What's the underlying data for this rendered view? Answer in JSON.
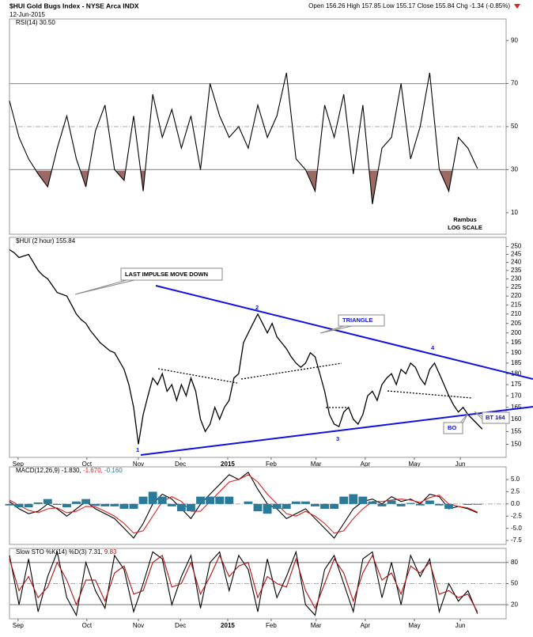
{
  "header": {
    "title": "$HUI Gold Bugs Index - NYSE Arca INDX",
    "date": "12-Jun-2015",
    "quote": "Open 156.26 High 157.85 Low 155.17 Close 155.84 Chg -1.34 (-0.85%)"
  },
  "chart_data": [
    {
      "type": "line",
      "legend": "RSI(14) 30.50",
      "ylim": [
        0,
        100
      ],
      "yticks": [
        10,
        30,
        50,
        70,
        90
      ],
      "hlines": [
        70,
        50,
        30
      ],
      "xlim": [
        0,
        52
      ],
      "annotations": [
        "Rambus",
        "LOG SCALE"
      ],
      "series": [
        {
          "name": "RSI(14)",
          "color": "#000000",
          "fill_below": 30,
          "fill_color": "#9b6a64",
          "values": [
            62,
            45,
            35,
            28,
            22,
            40,
            55,
            35,
            22,
            48,
            60,
            30,
            25,
            55,
            20,
            65,
            45,
            58,
            40,
            55,
            30,
            70,
            55,
            45,
            50,
            40,
            60,
            45,
            55,
            75,
            35,
            30,
            20,
            60,
            45,
            65,
            28,
            60,
            14,
            40,
            45,
            70,
            35,
            50,
            75,
            30,
            20,
            45,
            40,
            30.5
          ]
        }
      ]
    },
    {
      "type": "line",
      "legend": "$HUI (2 hour) 155.84",
      "log_scale": true,
      "ylim": [
        145,
        256
      ],
      "xlim": [
        0,
        104
      ],
      "yticks": [
        150,
        155,
        160,
        165,
        170,
        175,
        180,
        185,
        190,
        195,
        200,
        205,
        210,
        215,
        220,
        225,
        230,
        235,
        240,
        245,
        250
      ],
      "xticks": [
        {
          "value": 1.8,
          "label": "Sep"
        },
        {
          "value": 16.2,
          "label": "Oct"
        },
        {
          "value": 27,
          "label": "Nov"
        },
        {
          "value": 35.8,
          "label": "Dec"
        },
        {
          "value": 45.7,
          "label": "2015"
        },
        {
          "value": 54.8,
          "label": "Feb"
        },
        {
          "value": 64.2,
          "label": "Mar"
        },
        {
          "value": 74.5,
          "label": "Apr"
        },
        {
          "value": 84.8,
          "label": "May"
        },
        {
          "value": 94.4,
          "label": "Jun"
        }
      ],
      "annotations": [
        "LAST IMPULSE MOVE DOWN",
        "TRIANGLE",
        "1",
        "2",
        "3",
        "4",
        "BT 164",
        "BO"
      ],
      "series": [
        {
          "name": "$HUI",
          "color": "#000000",
          "values": [
            248,
            246,
            243,
            244,
            245,
            240,
            235,
            232,
            230,
            226,
            222,
            221,
            220,
            215,
            210,
            207,
            205,
            201,
            198,
            195,
            193,
            191,
            190,
            186,
            182,
            175,
            165,
            150,
            162,
            170,
            178,
            175,
            180,
            172,
            175,
            168,
            175,
            170,
            178,
            172,
            160,
            155,
            158,
            165,
            160,
            165,
            168,
            178,
            180,
            195,
            200,
            205,
            210,
            205,
            200,
            205,
            198,
            195,
            192,
            188,
            185,
            183,
            185,
            190,
            188,
            180,
            172,
            162,
            158,
            157,
            163,
            165,
            160,
            158,
            162,
            170,
            172,
            168,
            175,
            178,
            180,
            175,
            182,
            180,
            185,
            183,
            178,
            175,
            182,
            185,
            180,
            175,
            170,
            166,
            163,
            165,
            162,
            160,
            158,
            156
          ]
        }
      ]
    },
    {
      "type": "line",
      "legend": "MACD(12,26,9)",
      "ylim": [
        -8.3,
        7.6
      ],
      "xlim": [
        0,
        52
      ],
      "hlines": [
        0
      ],
      "yticks": [
        {
          "value": 5,
          "label": "5.0"
        },
        {
          "value": 2.5,
          "label": "2.5"
        },
        {
          "value": 0,
          "label": "0.0"
        },
        {
          "value": -2.5,
          "label": "-2.5"
        },
        {
          "value": -5,
          "label": "-5.0"
        },
        {
          "value": -7.5,
          "label": "-7.5"
        }
      ],
      "series": [
        {
          "name": "-1.830,",
          "color": "#000000",
          "values": [
            0.5,
            -1,
            -2,
            -1.5,
            0,
            -1,
            -2.5,
            -1,
            0.5,
            -1,
            -2,
            -3,
            -5,
            -7,
            -4,
            0,
            2,
            1,
            -1,
            -3,
            0,
            2,
            4,
            6,
            5,
            6.5,
            3,
            0,
            -1,
            -3,
            -2,
            -1,
            -3,
            -5,
            -7,
            -4,
            -1,
            0.5,
            1,
            0,
            1.5,
            0.5,
            1,
            0,
            2,
            1.5,
            -1,
            -0.5,
            -1,
            -1.83
          ]
        },
        {
          "name": "-1.670,",
          "color": "#e0201c",
          "values": [
            0.8,
            -0.3,
            -1.3,
            -1.8,
            -1,
            -0.8,
            -1.8,
            -1.5,
            -0.5,
            -0.6,
            -1.5,
            -2.5,
            -4,
            -6,
            -5.5,
            -2.5,
            0.5,
            1.5,
            0.5,
            -1.5,
            -1.5,
            0.5,
            2.5,
            4.5,
            5,
            6,
            4.5,
            2,
            0,
            -2,
            -2.5,
            -1.5,
            -2.5,
            -4,
            -6,
            -5.5,
            -3,
            -1,
            0.5,
            0.5,
            0.8,
            1,
            0.8,
            0.3,
            1.3,
            1.8,
            0,
            -0.5,
            -0.8,
            -1.67
          ]
        },
        {
          "name": "-0.160",
          "color": "#2a7a9a",
          "type": "bar",
          "values": [
            -0.3,
            -0.7,
            -0.7,
            0.3,
            1,
            -0.2,
            -0.7,
            0.5,
            1,
            -0.4,
            -0.5,
            -0.5,
            -1,
            -1,
            1.5,
            2.5,
            1.5,
            -0.5,
            -1.5,
            -1.5,
            1.5,
            1.5,
            1.5,
            1.5,
            0,
            0.5,
            -1.5,
            -2,
            -1,
            -1,
            0.5,
            0.5,
            -0.5,
            -1,
            -1,
            1.5,
            2,
            1.5,
            0.5,
            -0.5,
            0.7,
            -0.5,
            0.2,
            -0.3,
            0.7,
            -0.3,
            -1,
            0,
            -0.2,
            -0.16
          ]
        }
      ]
    },
    {
      "type": "line",
      "legend": "Slow STO %K(14) %D(3)",
      "ylim": [
        0,
        100
      ],
      "yticks": [
        20,
        50,
        80
      ],
      "hlines": [
        80,
        50,
        20
      ],
      "xlim": [
        0,
        52
      ],
      "xticks": [
        {
          "value": 0.9,
          "label": "Sep"
        },
        {
          "value": 8.1,
          "label": "Oct"
        },
        {
          "value": 13.5,
          "label": "Nov"
        },
        {
          "value": 17.9,
          "label": "Dec"
        },
        {
          "value": 22.85,
          "label": "2015"
        },
        {
          "value": 27.4,
          "label": "Feb"
        },
        {
          "value": 32.1,
          "label": "Mar"
        },
        {
          "value": 37.25,
          "label": "Apr"
        },
        {
          "value": 42.4,
          "label": "May"
        },
        {
          "value": 47.2,
          "label": "Jun"
        }
      ],
      "series": [
        {
          "name": "7.31,",
          "color": "#000000",
          "values": [
            90,
            20,
            85,
            10,
            60,
            95,
            30,
            5,
            80,
            40,
            15,
            90,
            70,
            10,
            50,
            95,
            85,
            20,
            60,
            90,
            15,
            80,
            95,
            40,
            90,
            70,
            10,
            85,
            30,
            60,
            95,
            20,
            5,
            70,
            90,
            50,
            10,
            85,
            95,
            30,
            80,
            20,
            90,
            60,
            85,
            10,
            50,
            25,
            40,
            7.31
          ]
        },
        {
          "name": "9.83",
          "color": "#b01010",
          "values": [
            85,
            40,
            60,
            30,
            45,
            80,
            55,
            20,
            55,
            55,
            25,
            65,
            75,
            35,
            40,
            80,
            90,
            45,
            50,
            80,
            35,
            60,
            90,
            60,
            75,
            80,
            30,
            60,
            50,
            45,
            85,
            40,
            15,
            50,
            85,
            65,
            25,
            65,
            90,
            55,
            65,
            35,
            75,
            65,
            80,
            35,
            40,
            30,
            35,
            9.83
          ]
        }
      ]
    }
  ]
}
